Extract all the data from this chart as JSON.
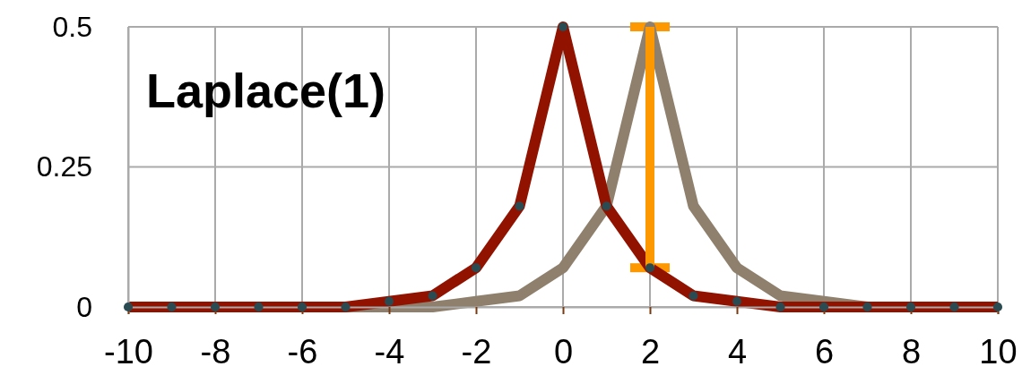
{
  "chart_data": {
    "type": "line",
    "title": "Laplace(1)",
    "x": [
      -10,
      -9,
      -8,
      -7,
      -6,
      -5,
      -4,
      -3,
      -2,
      -1,
      0,
      1,
      2,
      3,
      4,
      5,
      6,
      7,
      8,
      9,
      10
    ],
    "series": [
      {
        "color": "#921200",
        "values": [
          0,
          0,
          0,
          0,
          0,
          0,
          0.01,
          0.02,
          0.07,
          0.18,
          0.5,
          0.18,
          0.07,
          0.02,
          0.01,
          0,
          0,
          0,
          0,
          0,
          0
        ]
      },
      {
        "color": "#8e806c",
        "marker": "none",
        "values": [
          0,
          0,
          0,
          0,
          0,
          0,
          0,
          0,
          0.01,
          0.02,
          0.07,
          0.18,
          0.5,
          0.18,
          0.07,
          0.02,
          0.01,
          0,
          0,
          0,
          0
        ]
      },
      {
        "color": "#fd9800",
        "marker": "none",
        "x": [
          2,
          2
        ],
        "values": [
          0.07,
          0.5
        ]
      }
    ],
    "marker": "circle",
    "line_style": "solid",
    "xlim": [
      -10,
      10
    ],
    "xticks": [
      -10,
      -8,
      -6,
      -4,
      -2,
      0,
      2,
      4,
      6,
      8,
      10
    ],
    "ylim": [
      0,
      0.5
    ],
    "yticks": [
      0,
      0.25,
      0.5
    ],
    "grid": true
  }
}
